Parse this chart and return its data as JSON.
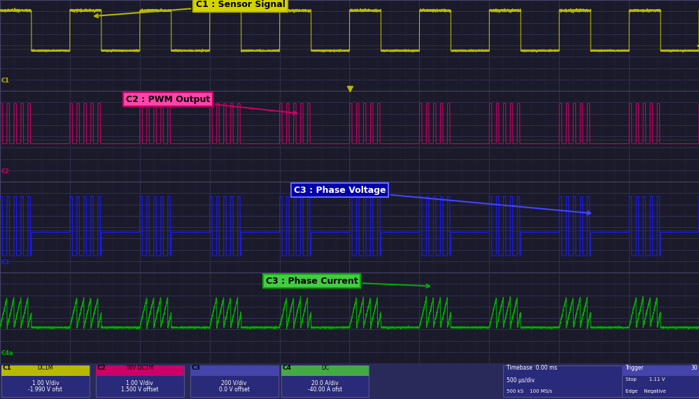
{
  "bg_color": "#1a1a2e",
  "grid_color": "#3a3a5a",
  "panel_bg": "#0d0d1a",
  "ch1_color": "#b8b800",
  "ch2_color": "#cc0066",
  "ch3_color": "#1a1aff",
  "ch4_color": "#00aa00",
  "title_ch1": "C1 : Sensor Signal",
  "title_ch2": "C2 : PWM Output",
  "title_ch3": "C3 : Phase Voltage",
  "title_ch4": "C3 : Phase Current",
  "status_bg": "#3a3a8a",
  "timebase": "Timebase  0.00 ms",
  "trigger_label": "Trigger",
  "ch1_info": "1.00 V/div\n-1.990 V ofst",
  "ch2_info": "1.00 V/div\n1.500 V offset",
  "ch3_info": "200 V/div\n0.0 V offset",
  "ch4_info": "20.0 A/div\n-40.00 A ofst",
  "timebase_info": "500 μs/div\n500 kS    100 MS/s",
  "trigger_info": "Stop        1.11 V\nEdge    Negative"
}
